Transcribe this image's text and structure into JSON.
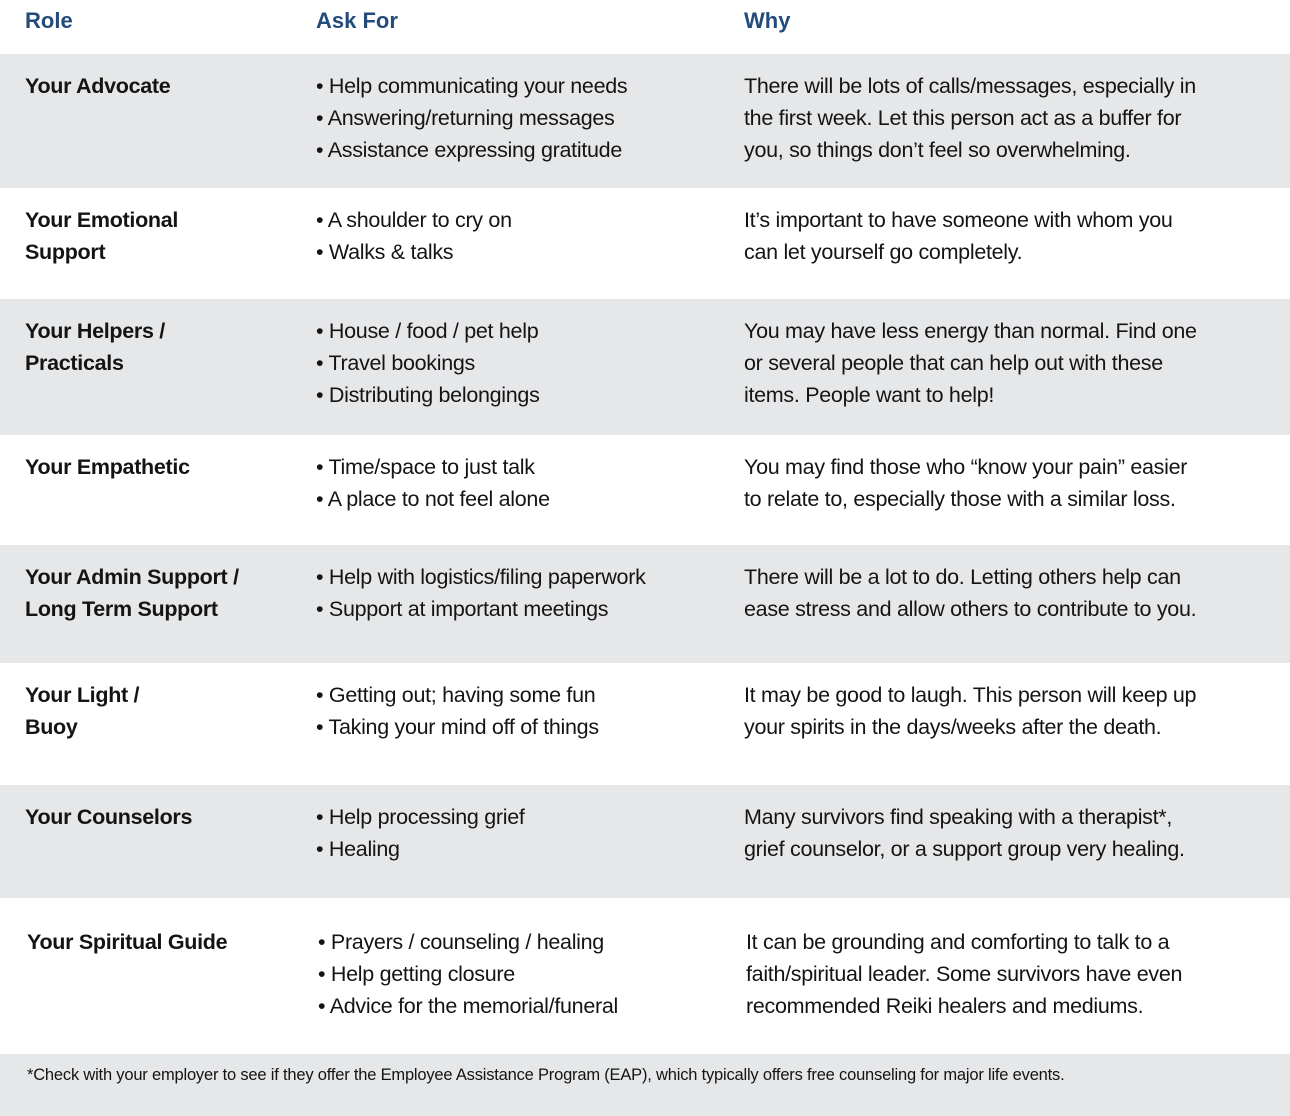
{
  "header": {
    "role": "Role",
    "ask_for": "Ask For",
    "why": "Why"
  },
  "rows": [
    {
      "role": "Your Advocate",
      "ask": [
        "Help communicating your needs",
        "Answering/returning messages",
        "Assistance expressing gratitude"
      ],
      "why": "There will be lots of calls/messages, especially in\nthe first week. Let this person act as a buffer for\nyou, so things don’t feel so overwhelming."
    },
    {
      "role": "Your Emotional\nSupport",
      "ask": [
        "A shoulder to cry on",
        "Walks & talks"
      ],
      "why": "It’s important to have someone with whom you\ncan let yourself go completely."
    },
    {
      "role": "Your Helpers /\nPracticals",
      "ask": [
        "House / food / pet help",
        "Travel bookings",
        "Distributing belongings"
      ],
      "why": "You may have less energy than normal. Find one\nor several people that can help out with these\nitems. People want to help!"
    },
    {
      "role": "Your Empathetic",
      "ask": [
        "Time/space to just talk",
        "A place to not feel alone"
      ],
      "why": "You may find those who “know your pain” easier\nto relate to, especially those with a similar loss."
    },
    {
      "role": "Your Admin Support /\nLong Term Support",
      "ask": [
        "Help with logistics/filing paperwork",
        "Support at important meetings"
      ],
      "why": "There will be a lot to do. Letting others help can\nease stress and allow others to contribute to you."
    },
    {
      "role": "Your Light /\nBuoy",
      "ask": [
        "Getting out; having some fun",
        "Taking your mind off of things"
      ],
      "why": "It may be good to laugh.  This person will keep up\nyour spirits in the days/weeks after the death."
    },
    {
      "role": "Your Counselors",
      "ask": [
        "Help processing grief",
        "Healing"
      ],
      "why": "Many survivors find speaking with a therapist*,\ngrief counselor, or a support group very healing."
    },
    {
      "role": "Your Spiritual Guide",
      "ask": [
        "Prayers / counseling / healing",
        "Help getting closure",
        "Advice for the memorial/funeral"
      ],
      "why": "It can be grounding and comforting to talk to a\nfaith/spiritual leader. Some survivors have even\nrecommended Reiki healers and mediums."
    }
  ],
  "footnote": "*Check with your employer to see if they offer the Employee Assistance Program (EAP), which typically offers free counseling for major life events."
}
